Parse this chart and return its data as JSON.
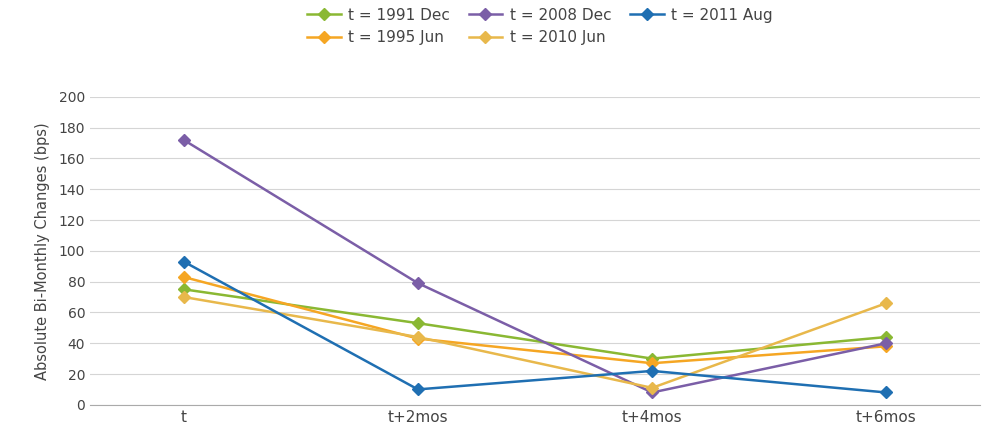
{
  "ylabel": "Absolute Bi-Monthly Changes (bps)",
  "x_labels": [
    "t",
    "t+2mos",
    "t+4mos",
    "t+6mos"
  ],
  "x_positions": [
    0,
    1,
    2,
    3
  ],
  "series": [
    {
      "label": "t = 1991 Dec",
      "color": "#8ab833",
      "values": [
        75,
        53,
        30,
        44
      ]
    },
    {
      "label": "t = 1995 Jun",
      "color": "#f5a623",
      "values": [
        83,
        43,
        27,
        38
      ]
    },
    {
      "label": "t = 2008 Dec",
      "color": "#7b5ea7",
      "values": [
        172,
        79,
        8,
        40
      ]
    },
    {
      "label": "t = 2010 Jun",
      "color": "#e8b84b",
      "values": [
        70,
        44,
        11,
        66
      ]
    },
    {
      "label": "t = 2011 Aug",
      "color": "#1f6fb2",
      "values": [
        93,
        10,
        22,
        8
      ]
    }
  ],
  "ylim": [
    0,
    200
  ],
  "yticks": [
    0,
    20,
    40,
    60,
    80,
    100,
    120,
    140,
    160,
    180,
    200
  ],
  "background_color": "#ffffff",
  "grid_color": "#d5d5d5",
  "marker": "D",
  "markersize": 6,
  "linewidth": 1.8
}
